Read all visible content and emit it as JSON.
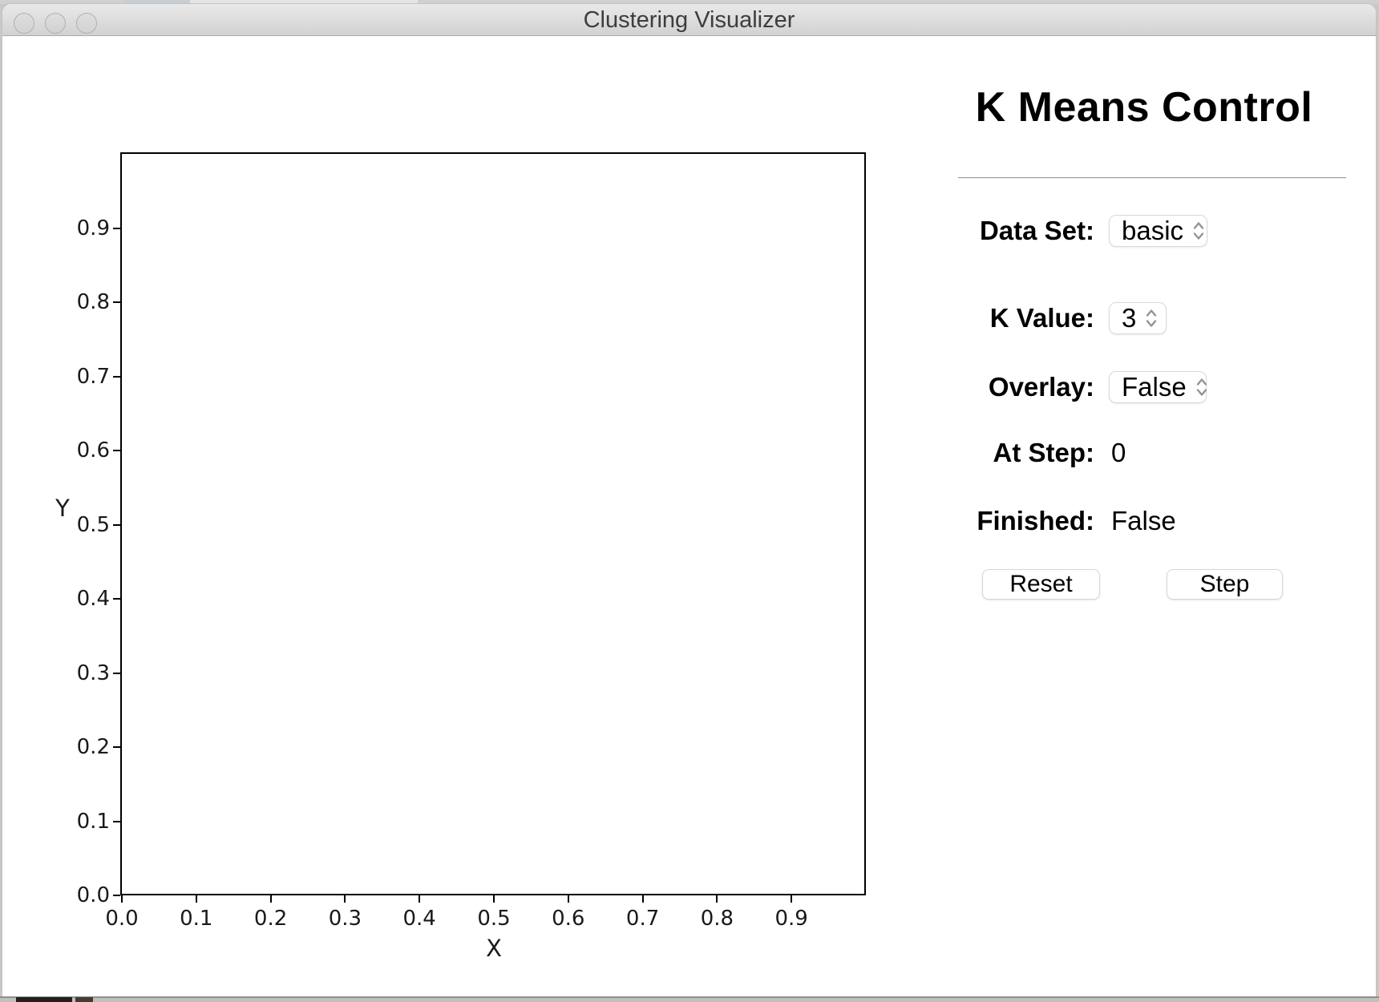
{
  "titlebar": {
    "title": "Clustering Visualizer"
  },
  "panel": {
    "title": "K Means Control",
    "data_set": {
      "label": "Data Set:",
      "value": "basic"
    },
    "k_value": {
      "label": "K Value:",
      "value": "3"
    },
    "overlay": {
      "label": "Overlay:",
      "value": "False"
    },
    "at_step": {
      "label": "At Step:",
      "value": "0"
    },
    "finished": {
      "label": "Finished:",
      "value": "False"
    },
    "reset_label": "Reset",
    "step_label": "Step"
  },
  "chart_data": {
    "type": "scatter",
    "title": "",
    "xlabel": "X",
    "ylabel": "Y",
    "xlim": [
      0.0,
      1.0
    ],
    "ylim": [
      0.0,
      1.0
    ],
    "xticks": [
      "0.0",
      "0.1",
      "0.2",
      "0.3",
      "0.4",
      "0.5",
      "0.6",
      "0.7",
      "0.8",
      "0.9"
    ],
    "yticks": [
      "0.0",
      "0.1",
      "0.2",
      "0.3",
      "0.4",
      "0.5",
      "0.6",
      "0.7",
      "0.8",
      "0.9"
    ],
    "grid": false,
    "points": []
  }
}
